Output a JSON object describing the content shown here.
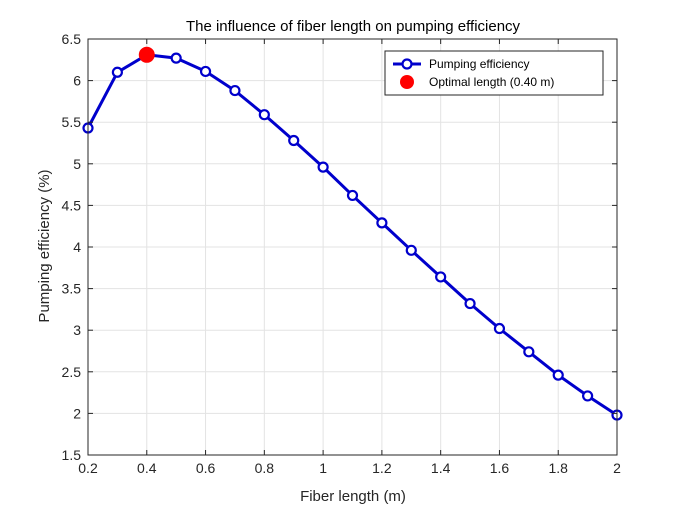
{
  "chart_data": {
    "type": "line",
    "title": "The influence of fiber length on pumping efficiency",
    "xlabel": "Fiber length (m)",
    "ylabel": "Pumping efficiency (%)",
    "xlim": [
      0.2,
      2.0
    ],
    "ylim": [
      1.5,
      6.5
    ],
    "xticks": [
      0.2,
      0.4,
      0.6,
      0.8,
      1.0,
      1.2,
      1.4,
      1.6,
      1.8,
      2.0
    ],
    "xtick_labels": [
      "0.2",
      "0.4",
      "0.6",
      "0.8",
      "1",
      "1.2",
      "1.4",
      "1.6",
      "1.8",
      "2"
    ],
    "yticks": [
      1.5,
      2.0,
      2.5,
      3.0,
      3.5,
      4.0,
      4.5,
      5.0,
      5.5,
      6.0,
      6.5
    ],
    "ytick_labels": [
      "1.5",
      "2",
      "2.5",
      "3",
      "3.5",
      "4",
      "4.5",
      "5",
      "5.5",
      "6",
      "6.5"
    ],
    "grid": true,
    "legend_position": "top-right",
    "series": [
      {
        "name": "Pumping efficiency",
        "color": "#0000CC",
        "marker": "open-circle",
        "x": [
          0.2,
          0.3,
          0.4,
          0.5,
          0.6,
          0.7,
          0.8,
          0.9,
          1.0,
          1.1,
          1.2,
          1.3,
          1.4,
          1.5,
          1.6,
          1.7,
          1.8,
          1.9,
          2.0
        ],
        "y": [
          5.43,
          6.1,
          6.31,
          6.27,
          6.11,
          5.88,
          5.59,
          5.28,
          4.96,
          4.62,
          4.29,
          3.96,
          3.64,
          3.32,
          3.02,
          2.74,
          2.46,
          2.21,
          1.98
        ]
      },
      {
        "name": "Optimal length (0.40 m)",
        "color": "#FF0000",
        "marker": "filled-circle",
        "x": [
          0.4
        ],
        "y": [
          6.31
        ]
      }
    ]
  }
}
